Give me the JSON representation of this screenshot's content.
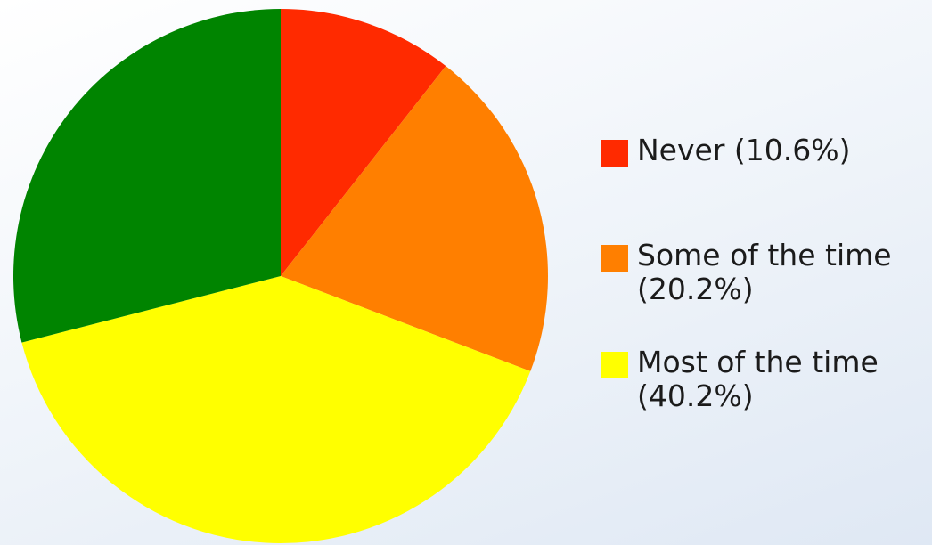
{
  "chart_data": {
    "type": "pie",
    "title": "",
    "start_angle_deg": 0,
    "direction": "clockwise",
    "legend_position": "right",
    "slices": [
      {
        "label": "Never (10.6%)",
        "value": 10.6,
        "color": "#ff2a00"
      },
      {
        "label": "Some of the time (20.2%)",
        "value": 20.2,
        "color": "#ff7f00"
      },
      {
        "label": "Most of the time (40.2%)",
        "value": 40.2,
        "color": "#ffff00"
      },
      {
        "label": "",
        "value": 29.0,
        "color": "#008400"
      }
    ]
  }
}
